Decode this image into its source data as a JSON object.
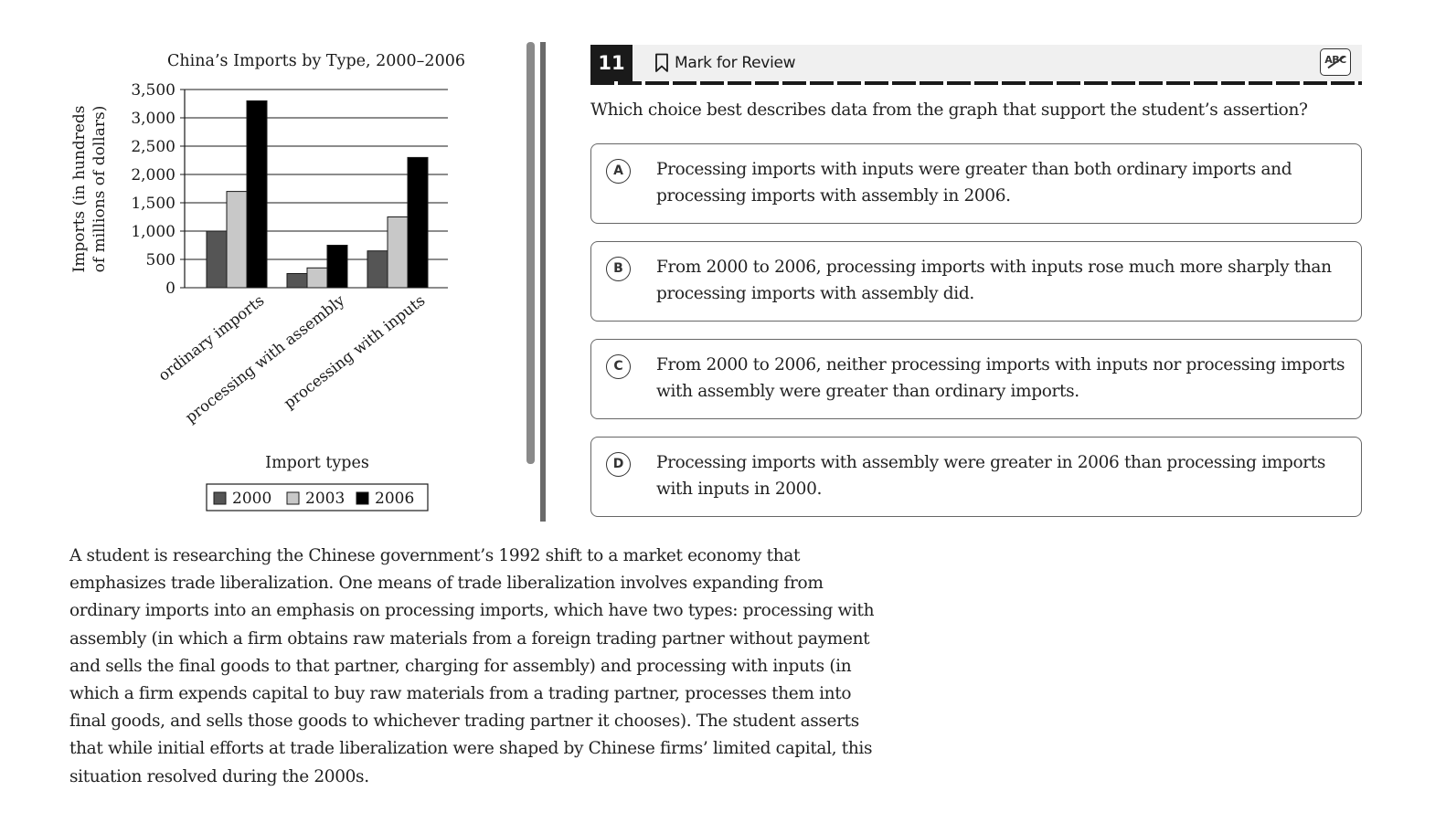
{
  "question": {
    "number": "11",
    "mark_for_review_label": "Mark for Review",
    "eliminator_label": "ABC",
    "prompt": "Which choice best describes data from the graph that support the student’s assertion?",
    "choices": [
      {
        "letter": "A",
        "text": "Processing imports with inputs were greater than both ordinary imports and processing imports with assembly in 2006."
      },
      {
        "letter": "B",
        "text": "From 2000 to 2006, processing imports with inputs rose much more sharply than processing imports with assembly did."
      },
      {
        "letter": "C",
        "text": "From 2000 to 2006, neither processing imports with inputs nor processing imports with assembly were greater than ordinary imports."
      },
      {
        "letter": "D",
        "text": "Processing imports with assembly were greater in 2006 than processing imports with inputs in 2000."
      }
    ]
  },
  "passage": {
    "text": "A student is researching the Chinese government’s 1992 shift to a market economy that emphasizes trade liberalization. One means of trade liberalization involves expanding from ordinary imports into an emphasis on processing imports, which have two types: processing with assembly (in which a firm obtains raw materials from a foreign trading partner without payment and sells the final goods to that partner, charging for assembly) and processing with inputs (in which a firm expends capital to buy raw materials from a trading partner, processes them into final goods, and sells those goods to whichever trading partner it chooses). The student asserts that while initial efforts at trade liberalization were shaped by Chinese firms’ limited capital, this situation resolved during the 2000s."
  },
  "chart_data": {
    "type": "bar",
    "title": "China’s Imports by Type, 2000–2006",
    "ylabel_line1": "Imports (in hundreds",
    "ylabel_line2": "of millions of dollars)",
    "xlabel": "Import types",
    "categories": [
      "ordinary imports",
      "processing with assembly",
      "processing with inputs"
    ],
    "series": [
      {
        "name": "2000",
        "color": "#555555",
        "values": [
          1000,
          250,
          650
        ]
      },
      {
        "name": "2003",
        "color": "#c8c8c8",
        "values": [
          1700,
          350,
          1250
        ]
      },
      {
        "name": "2006",
        "color": "#000000",
        "values": [
          3300,
          750,
          2300
        ]
      }
    ],
    "ylim": [
      0,
      3500
    ],
    "yticks": [
      0,
      500,
      1000,
      1500,
      2000,
      2500,
      3000,
      3500
    ],
    "ytick_labels": [
      "0",
      "500",
      "1,000",
      "1,500",
      "2,000",
      "2,500",
      "3,000",
      "3,500"
    ],
    "grid": true,
    "legend_position": "bottom"
  }
}
